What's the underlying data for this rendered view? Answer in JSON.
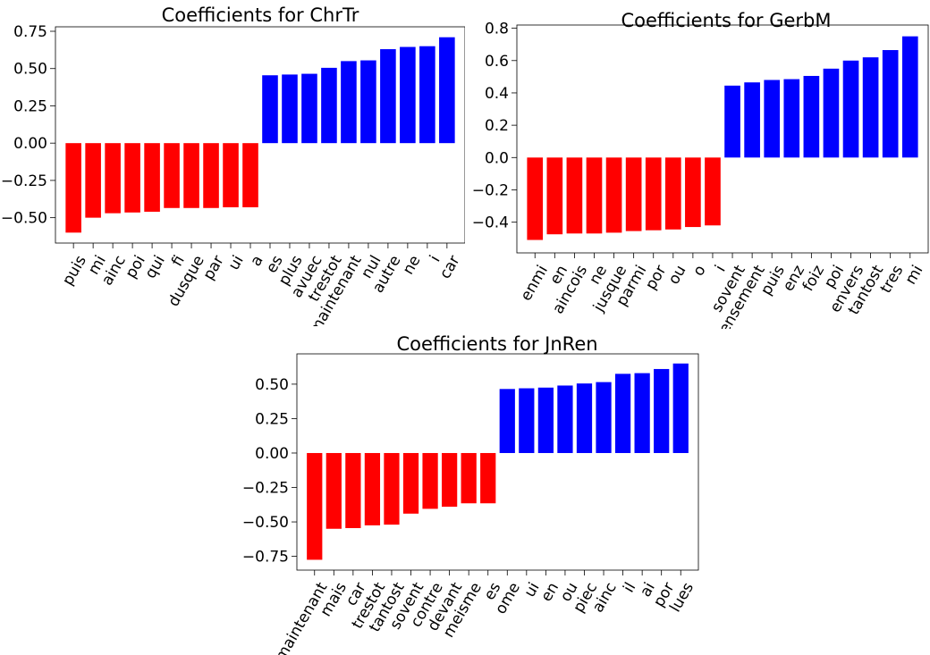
{
  "chart_data": [
    {
      "type": "bar",
      "title": "Coefficients for ChrTr",
      "xlabel": "",
      "ylabel": "",
      "categories": [
        "puis",
        "mi",
        "ainc",
        "poi",
        "qui",
        "fi",
        "dusque",
        "par",
        "ui",
        "a",
        "es",
        "plus",
        "avuec",
        "trestot",
        "maintenant",
        "nul",
        "autre",
        "ne",
        "i",
        "car"
      ],
      "values": [
        -0.6,
        -0.5,
        -0.47,
        -0.465,
        -0.46,
        -0.435,
        -0.435,
        -0.435,
        -0.43,
        -0.43,
        0.455,
        0.46,
        0.465,
        0.505,
        0.55,
        0.555,
        0.63,
        0.645,
        0.65,
        0.71
      ],
      "ylim": [
        -0.67,
        0.78
      ],
      "yticks": [
        -0.5,
        -0.25,
        0.0,
        0.25,
        0.5,
        0.75
      ],
      "ytick_labels": [
        "−0.50",
        "−0.25",
        "0.00",
        "0.25",
        "0.50",
        "0.75"
      ],
      "colors": {
        "negative": "#ff0000",
        "positive": "#0000ff"
      }
    },
    {
      "type": "bar",
      "title": "Coefficients for GerbM",
      "xlabel": "",
      "ylabel": "",
      "categories": [
        "enmi",
        "en",
        "aincois",
        "ne",
        "jusque",
        "parmi",
        "por",
        "ou",
        "o",
        "i",
        "sovent",
        "ensement",
        "puis",
        "enz",
        "foiz",
        "poi",
        "envers",
        "tantost",
        "tres",
        "mi"
      ],
      "values": [
        -0.51,
        -0.475,
        -0.47,
        -0.47,
        -0.465,
        -0.455,
        -0.45,
        -0.445,
        -0.43,
        -0.42,
        0.445,
        0.465,
        0.48,
        0.485,
        0.505,
        0.55,
        0.6,
        0.62,
        0.665,
        0.75
      ],
      "ylim": [
        -0.59,
        0.82
      ],
      "yticks": [
        -0.4,
        -0.2,
        0.0,
        0.2,
        0.4,
        0.6,
        0.8
      ],
      "ytick_labels": [
        "−0.4",
        "−0.2",
        "0.0",
        "0.2",
        "0.4",
        "0.6",
        "0.8"
      ],
      "colors": {
        "negative": "#ff0000",
        "positive": "#0000ff"
      }
    },
    {
      "type": "bar",
      "title": "Coefficients for JnRen",
      "xlabel": "",
      "ylabel": "",
      "categories": [
        "maintenant",
        "mais",
        "car",
        "trestot",
        "tantost",
        "sovent",
        "contre",
        "devant",
        "meisme",
        "es",
        "ome",
        "ui",
        "en",
        "ou",
        "piec",
        "ainc",
        "il",
        "ai",
        "por",
        "lues"
      ],
      "values": [
        -0.775,
        -0.55,
        -0.545,
        -0.525,
        -0.52,
        -0.44,
        -0.405,
        -0.39,
        -0.365,
        -0.365,
        0.465,
        0.47,
        0.475,
        0.49,
        0.505,
        0.515,
        0.575,
        0.58,
        0.61,
        0.65
      ],
      "ylim": [
        -0.85,
        0.72
      ],
      "yticks": [
        -0.75,
        -0.5,
        -0.25,
        0.0,
        0.25,
        0.5
      ],
      "ytick_labels": [
        "−0.75",
        "−0.50",
        "−0.25",
        "0.00",
        "0.25",
        "0.50"
      ],
      "colors": {
        "negative": "#ff0000",
        "positive": "#0000ff"
      }
    }
  ]
}
